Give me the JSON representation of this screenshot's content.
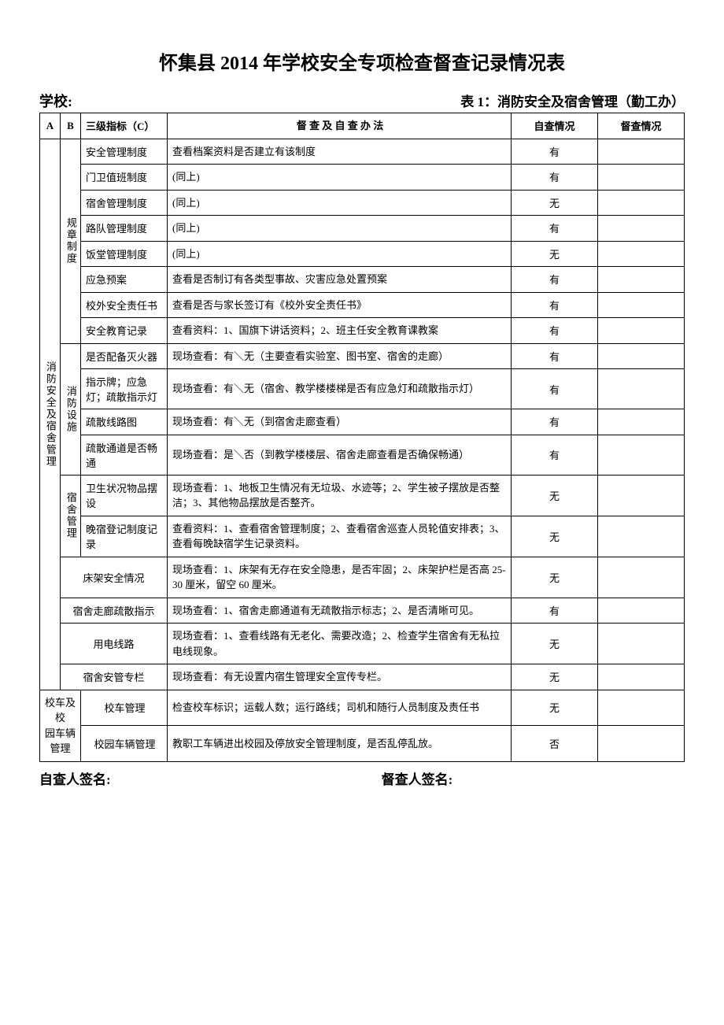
{
  "title": "怀集县 2014 年学校安全专项检查督查记录情况表",
  "school_label": "学校:",
  "table_label": "表 1：消防安全及宿舍管理（勤工办）",
  "headers": {
    "a": "A",
    "b": "B",
    "c": "三级指标（C）",
    "method": "督 查 及 自 查 办 法",
    "self": "自查情况",
    "sup": "督查情况"
  },
  "section_a1": "消防安全及宿舍管理",
  "section_b1": "规章制度",
  "section_b2": "消防设施",
  "section_b3": "宿舍管理",
  "section_a2_line1": "校车及校",
  "section_a2_line2": "园车辆",
  "section_a2_line3": "管理",
  "rows": [
    {
      "c": "安全管理制度",
      "m": "查看档案资料是否建立有该制度",
      "s": "有"
    },
    {
      "c": "门卫值班制度",
      "m": "(同上)",
      "s": "有"
    },
    {
      "c": "宿舍管理制度",
      "m": "(同上)",
      "s": "无"
    },
    {
      "c": "路队管理制度",
      "m": "(同上)",
      "s": "有"
    },
    {
      "c": "饭堂管理制度",
      "m": "(同上)",
      "s": "无"
    },
    {
      "c": "应急预案",
      "m": "查看是否制订有各类型事故、灾害应急处置预案",
      "s": "有"
    },
    {
      "c": "校外安全责任书",
      "m": "查看是否与家长签订有《校外安全责任书》",
      "s": "有"
    },
    {
      "c": "安全教育记录",
      "m": "查看资料：1、国旗下讲话资料；2、班主任安全教育课教案",
      "s": "有"
    },
    {
      "c": "是否配备灭火器",
      "m": "现场查看：有＼无（主要查看实验室、图书室、宿舍的走廊）",
      "s": "有"
    },
    {
      "c": "指示牌；应急灯；疏散指示灯",
      "m": "现场查看：有＼无（宿舍、教学楼楼梯是否有应急灯和疏散指示灯）",
      "s": "有"
    },
    {
      "c": "疏散线路图",
      "m": "现场查看：有＼无（到宿舍走廊查看）",
      "s": "有"
    },
    {
      "c": "疏散通道是否畅通",
      "m": "现场查看：是＼否（到教学楼楼层、宿舍走廊查看是否确保畅通）",
      "s": "有"
    },
    {
      "c": "卫生状况物品摆设",
      "m": "现场查看：1、地板卫生情况有无垃圾、水迹等；2、学生被子摆放是否整洁；3、其他物品摆放是否整齐。",
      "s": "无"
    },
    {
      "c": "晚宿登记制度记录",
      "m": "查看资料：1、查看宿舍管理制度；2、查看宿舍巡查人员轮值安排表；3、查看每晚缺宿学生记录资料。",
      "s": "无"
    },
    {
      "c": "床架安全情况",
      "m": "现场查看：1、床架有无存在安全隐患，是否牢固；2、床架护栏是否高 25-30 厘米，留空 60 厘米。",
      "s": "无"
    },
    {
      "c": "宿舍走廊疏散指示",
      "m": "现场查看：1、宿舍走廊通道有无疏散指示标志；2、是否清晰可见。",
      "s": "有"
    },
    {
      "c": "用电线路",
      "m": "现场查看：1、查看线路有无老化、需要改造；2、检查学生宿舍有无私拉电线现象。",
      "s": "无"
    },
    {
      "c": "宿舍安管专栏",
      "m": "现场查看：有无设置内宿生管理安全宣传专栏。",
      "s": "无"
    },
    {
      "c": "校车管理",
      "m": "检查校车标识；运载人数；运行路线；司机和随行人员制度及责任书",
      "s": "无"
    },
    {
      "c": "校园车辆管理",
      "m": "教职工车辆进出校园及停放安全管理制度，是否乱停乱放。",
      "s": "否"
    }
  ],
  "footer": {
    "self_signer": "自查人签名:",
    "sup_signer": "督查人签名:"
  }
}
